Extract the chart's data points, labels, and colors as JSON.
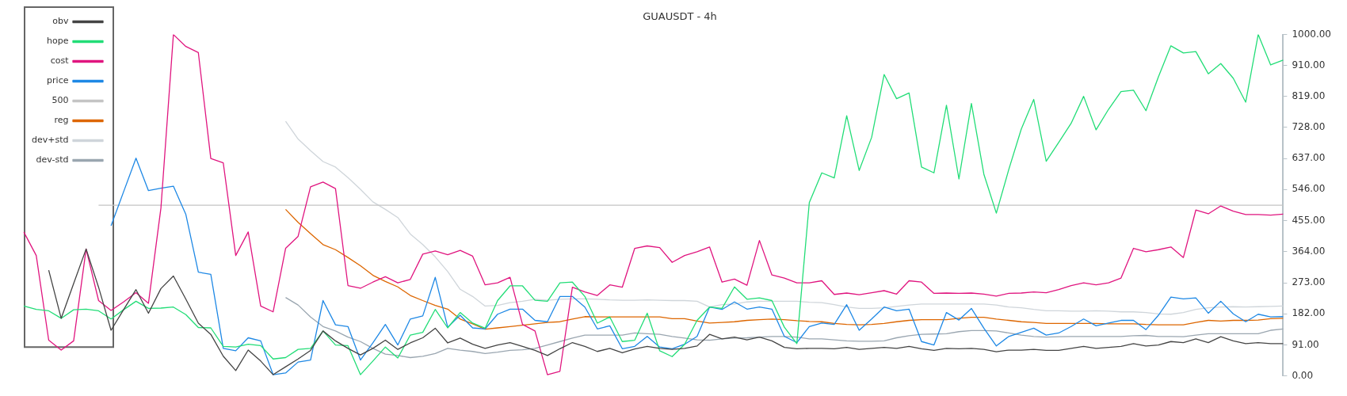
{
  "chart_data": {
    "type": "line",
    "title": "GUAUSDT - 4h",
    "categories": [
      null,
      null,
      null,
      null,
      null,
      null,
      null,
      null,
      null,
      null,
      null,
      null,
      null,
      null,
      null,
      null,
      null,
      null,
      null,
      null,
      null,
      null,
      null,
      null,
      null,
      null,
      null,
      null,
      null,
      null,
      null,
      null,
      null,
      null,
      null,
      null,
      null,
      null,
      null,
      null,
      null,
      null,
      null,
      null,
      null,
      null,
      null,
      null,
      null,
      null,
      null,
      null,
      null,
      null,
      null,
      null,
      null,
      null,
      null,
      null,
      null,
      null,
      null,
      null,
      null,
      null,
      null,
      null,
      null,
      null,
      null,
      null,
      null,
      null,
      null,
      null,
      null,
      null,
      null,
      null,
      null,
      null,
      null,
      null,
      null,
      null,
      null,
      null,
      null,
      null,
      null,
      null,
      null,
      null,
      null,
      null,
      null,
      null,
      null,
      null,
      null,
      null
    ],
    "ylim": [
      0,
      1000
    ],
    "yticks": [
      {
        "value": 0,
        "label": "0.00"
      },
      {
        "value": 91,
        "label": "91.00"
      },
      {
        "value": 182,
        "label": "182.00"
      },
      {
        "value": 273,
        "label": "273.00"
      },
      {
        "value": 364,
        "label": "364.00"
      },
      {
        "value": 455,
        "label": "455.00"
      },
      {
        "value": 546,
        "label": "546.00"
      },
      {
        "value": 637,
        "label": "637.00"
      },
      {
        "value": 728,
        "label": "728.00"
      },
      {
        "value": 819,
        "label": "819.00"
      },
      {
        "value": 910,
        "label": "910.00"
      },
      {
        "value": 1000,
        "label": "1000.00"
      }
    ],
    "legend": "top left",
    "marker": "none",
    "line_style": "solid",
    "series": [
      {
        "name": "obv",
        "color": "#444444",
        "values": [
          null,
          null,
          310,
          169,
          271,
          372,
          260,
          134,
          194,
          253,
          184,
          256,
          293,
          225,
          155,
          122,
          58,
          16,
          76,
          44,
          4,
          27,
          50,
          75,
          132,
          103,
          81,
          62,
          81,
          105,
          78,
          97,
          112,
          140,
          97,
          111,
          93,
          81,
          91,
          98,
          87,
          75,
          60,
          80,
          98,
          87,
          72,
          81,
          68,
          79,
          87,
          81,
          78,
          81,
          88,
          122,
          109,
          114,
          106,
          114,
          103,
          84,
          80,
          81,
          81,
          80,
          84,
          78,
          81,
          84,
          81,
          87,
          80,
          75,
          81,
          80,
          81,
          78,
          71,
          76,
          76,
          78,
          75,
          75,
          81,
          87,
          81,
          84,
          87,
          95,
          88,
          91,
          101,
          98,
          109,
          98,
          115,
          103,
          95,
          98,
          95,
          95
        ]
      },
      {
        "name": "hope",
        "color": "#22dd77",
        "values": [
          205,
          195,
          191,
          169,
          194,
          196,
          191,
          167,
          194,
          219,
          198,
          199,
          202,
          180,
          142,
          141,
          87,
          85,
          93,
          89,
          50,
          54,
          78,
          81,
          132,
          91,
          89,
          4,
          44,
          85,
          53,
          120,
          128,
          195,
          141,
          186,
          155,
          140,
          221,
          264,
          264,
          222,
          219,
          273,
          275,
          233,
          155,
          173,
          101,
          105,
          184,
          74,
          57,
          93,
          163,
          202,
          198,
          261,
          225,
          229,
          221,
          143,
          95,
          508,
          595,
          580,
          762,
          602,
          699,
          883,
          812,
          829,
          612,
          595,
          793,
          577,
          798,
          591,
          477,
          605,
          723,
          810,
          629,
          684,
          740,
          819,
          721,
          781,
          833,
          837,
          777,
          876,
          967,
          946,
          950,
          885,
          915,
          872,
          802,
          1000,
          911,
          925
        ]
      },
      {
        "name": "cost",
        "color": "#e0157f",
        "values": [
          422,
          353,
          105,
          76,
          103,
          372,
          221,
          192,
          217,
          244,
          213,
          492,
          1000,
          965,
          947,
          637,
          624,
          353,
          422,
          205,
          188,
          374,
          409,
          554,
          568,
          549,
          265,
          257,
          275,
          291,
          273,
          283,
          357,
          366,
          355,
          368,
          351,
          267,
          273,
          289,
          151,
          132,
          4,
          14,
          260,
          246,
          236,
          267,
          260,
          374,
          381,
          376,
          333,
          353,
          364,
          378,
          275,
          284,
          266,
          397,
          296,
          287,
          273,
          273,
          279,
          239,
          243,
          238,
          244,
          250,
          240,
          279,
          275,
          242,
          243,
          242,
          243,
          240,
          234,
          242,
          243,
          246,
          244,
          253,
          265,
          273,
          267,
          273,
          287,
          374,
          364,
          370,
          378,
          347,
          486,
          475,
          498,
          483,
          473,
          473,
          471,
          474
        ]
      },
      {
        "name": "price",
        "color": "#1e88e5",
        "values": [
          null,
          null,
          null,
          null,
          null,
          null,
          null,
          440,
          539,
          638,
          543,
          550,
          556,
          473,
          304,
          298,
          81,
          74,
          112,
          103,
          4,
          9,
          41,
          47,
          221,
          150,
          145,
          47,
          97,
          151,
          91,
          167,
          176,
          289,
          143,
          178,
          141,
          138,
          181,
          196,
          196,
          163,
          159,
          233,
          233,
          202,
          138,
          147,
          80,
          87,
          116,
          85,
          80,
          93,
          116,
          202,
          195,
          217,
          196,
          202,
          196,
          116,
          98,
          145,
          155,
          151,
          209,
          134,
          167,
          202,
          191,
          196,
          101,
          91,
          186,
          164,
          198,
          140,
          88,
          116,
          128,
          140,
          120,
          126,
          145,
          167,
          147,
          155,
          163,
          163,
          136,
          178,
          231,
          226,
          229,
          184,
          219,
          182,
          159,
          181,
          173,
          174
        ]
      },
      {
        "name": "500",
        "color": "#c4c4c4",
        "values": [
          null,
          null,
          null,
          null,
          null,
          null,
          500,
          500,
          500,
          500,
          500,
          500,
          500,
          500,
          500,
          500,
          500,
          500,
          500,
          500,
          500,
          500,
          500,
          500,
          500,
          500,
          500,
          500,
          500,
          500,
          500,
          500,
          500,
          500,
          500,
          500,
          500,
          500,
          500,
          500,
          500,
          500,
          500,
          500,
          500,
          500,
          500,
          500,
          500,
          500,
          500,
          500,
          500,
          500,
          500,
          500,
          500,
          500,
          500,
          500,
          500,
          500,
          500,
          500,
          500,
          500,
          500,
          500,
          500,
          500,
          500,
          500,
          500,
          500,
          500,
          500,
          500,
          500,
          500,
          500,
          500,
          500,
          500,
          500,
          500,
          500,
          500,
          500,
          500,
          500,
          500,
          500,
          500,
          500,
          500,
          500,
          500,
          500,
          500,
          500,
          500,
          500
        ]
      },
      {
        "name": "reg",
        "color": "#dd6600",
        "values": [
          null,
          null,
          null,
          null,
          null,
          null,
          null,
          null,
          null,
          null,
          null,
          null,
          null,
          null,
          null,
          null,
          null,
          null,
          null,
          null,
          null,
          488,
          450,
          417,
          385,
          370,
          347,
          323,
          295,
          277,
          261,
          236,
          221,
          207,
          196,
          167,
          153,
          137,
          141,
          145,
          149,
          153,
          157,
          159,
          167,
          174,
          173,
          173,
          173,
          173,
          173,
          173,
          168,
          168,
          161,
          155,
          157,
          159,
          163,
          165,
          167,
          165,
          162,
          160,
          159,
          154,
          151,
          150,
          151,
          154,
          159,
          163,
          165,
          165,
          165,
          169,
          172,
          172,
          167,
          163,
          159,
          157,
          154,
          154,
          154,
          154,
          154,
          153,
          153,
          153,
          151,
          150,
          150,
          150,
          157,
          163,
          161,
          163,
          163,
          164,
          168,
          169
        ]
      },
      {
        "name": "dev+std",
        "color": "#cfd5da",
        "values": [
          null,
          null,
          null,
          null,
          null,
          null,
          null,
          null,
          null,
          null,
          null,
          null,
          null,
          null,
          null,
          null,
          null,
          null,
          null,
          null,
          null,
          746,
          694,
          660,
          628,
          612,
          581,
          547,
          510,
          488,
          464,
          416,
          385,
          349,
          306,
          254,
          233,
          205,
          207,
          215,
          219,
          225,
          222,
          225,
          226,
          226,
          225,
          223,
          222,
          222,
          223,
          222,
          221,
          221,
          219,
          202,
          209,
          211,
          217,
          219,
          219,
          219,
          219,
          216,
          215,
          209,
          202,
          198,
          198,
          200,
          204,
          208,
          211,
          211,
          211,
          211,
          211,
          211,
          208,
          202,
          200,
          195,
          191,
          191,
          190,
          190,
          191,
          190,
          188,
          188,
          186,
          182,
          181,
          186,
          195,
          200,
          202,
          203,
          202,
          203,
          204,
          205
        ]
      },
      {
        "name": "dev-std",
        "color": "#9aa6b0",
        "values": [
          null,
          null,
          null,
          null,
          null,
          null,
          null,
          null,
          null,
          null,
          null,
          null,
          null,
          null,
          null,
          null,
          null,
          null,
          null,
          null,
          null,
          230,
          208,
          173,
          145,
          132,
          114,
          101,
          81,
          64,
          60,
          54,
          58,
          66,
          81,
          76,
          72,
          66,
          70,
          75,
          77,
          81,
          91,
          101,
          111,
          120,
          120,
          120,
          120,
          126,
          124,
          122,
          116,
          111,
          106,
          105,
          109,
          111,
          112,
          114,
          116,
          116,
          114,
          109,
          109,
          106,
          103,
          102,
          102,
          103,
          112,
          118,
          122,
          123,
          124,
          130,
          133,
          133,
          132,
          126,
          120,
          116,
          114,
          115,
          116,
          116,
          116,
          116,
          116,
          118,
          119,
          116,
          116,
          115,
          120,
          124,
          124,
          124,
          124,
          124,
          134,
          138
        ]
      }
    ]
  }
}
